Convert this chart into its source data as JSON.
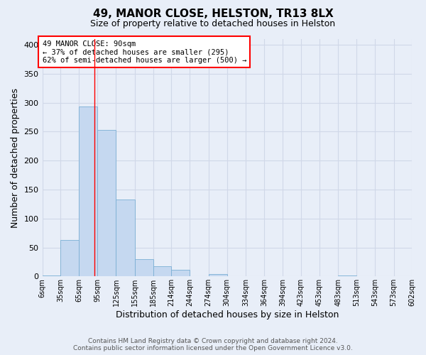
{
  "title": "49, MANOR CLOSE, HELSTON, TR13 8LX",
  "subtitle": "Size of property relative to detached houses in Helston",
  "xlabel": "Distribution of detached houses by size in Helston",
  "ylabel": "Number of detached properties",
  "bar_color": "#c5d8f0",
  "bar_edge_color": "#7aafd4",
  "background_color": "#e8eef8",
  "grid_color": "#d0d8e8",
  "property_line_x": 90,
  "property_line_color": "red",
  "annotation_text": "49 MANOR CLOSE: 90sqm\n← 37% of detached houses are smaller (295)\n62% of semi-detached houses are larger (500) →",
  "annotation_box_color": "white",
  "annotation_box_edge_color": "red",
  "bins": [
    6,
    35,
    65,
    95,
    125,
    155,
    185,
    214,
    244,
    274,
    304,
    334,
    364,
    394,
    423,
    453,
    483,
    513,
    543,
    573,
    602
  ],
  "bar_heights": [
    2,
    63,
    293,
    253,
    133,
    30,
    17,
    11,
    0,
    4,
    0,
    0,
    0,
    0,
    0,
    0,
    2,
    0,
    0,
    0
  ],
  "ylim": [
    0,
    410
  ],
  "yticks": [
    0,
    50,
    100,
    150,
    200,
    250,
    300,
    350,
    400
  ],
  "tick_labels": [
    "6sqm",
    "35sqm",
    "65sqm",
    "95sqm",
    "125sqm",
    "155sqm",
    "185sqm",
    "214sqm",
    "244sqm",
    "274sqm",
    "304sqm",
    "334sqm",
    "364sqm",
    "394sqm",
    "423sqm",
    "453sqm",
    "483sqm",
    "513sqm",
    "543sqm",
    "573sqm",
    "602sqm"
  ],
  "footer_line1": "Contains HM Land Registry data © Crown copyright and database right 2024.",
  "footer_line2": "Contains public sector information licensed under the Open Government Licence v3.0."
}
